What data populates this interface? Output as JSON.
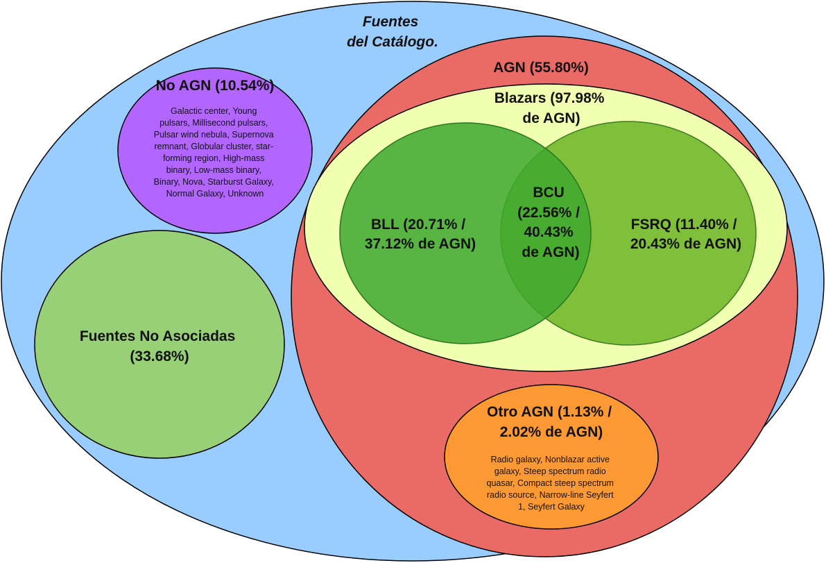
{
  "diagram": {
    "title_lines": [
      "Fuentes",
      "del Catálogo."
    ],
    "colors": {
      "catalog": "#99ccff",
      "agn": "#ea6b66",
      "blazars": "#f0ffb0",
      "bll": "#3da82e",
      "fsrq": "#7fbf3a",
      "no_agn": "#b266ff",
      "unassociated": "#97d077",
      "other_agn": "#ff9933",
      "stroke": "#000000"
    },
    "agn": {
      "lines": [
        "AGN (55.80%)"
      ]
    },
    "blazars": {
      "lines": [
        "Blazars (97.98%",
        "de AGN)"
      ]
    },
    "bll": {
      "lines": [
        "BLL (20.71% /",
        "37.12% de AGN)"
      ]
    },
    "bcu": {
      "lines": [
        "BCU",
        "(22.56% /",
        "40.43%",
        "de AGN)"
      ]
    },
    "fsrq": {
      "lines": [
        "FSRQ (11.40% /",
        "20.43% de AGN)"
      ]
    },
    "no_agn": {
      "lines": [
        "No AGN (10.54%)"
      ],
      "detail_lines": [
        "Galactic center, Young",
        "pulsars, Millisecond pulsars,",
        "Pulsar wind nebula, Supernova",
        "remnant, Globular cluster, star-",
        "forming region, High-mass",
        "binary, Low-mass binary,",
        "Binary, Nova, Starburst Galaxy,",
        "Normal Galaxy, Unknown"
      ]
    },
    "unassociated": {
      "lines": [
        "Fuentes No Asociadas",
        "(33.68%)"
      ]
    },
    "other_agn": {
      "lines": [
        "Otro AGN (1.13% /",
        "2.02% de AGN)"
      ],
      "detail_lines": [
        "Radio galaxy, Nonblazar active",
        "galaxy, Steep spectrum radio",
        "quasar, Compact steep spectrum",
        "radio source, Narrow-line Seyfert",
        "1, Seyfert Galaxy"
      ]
    }
  }
}
